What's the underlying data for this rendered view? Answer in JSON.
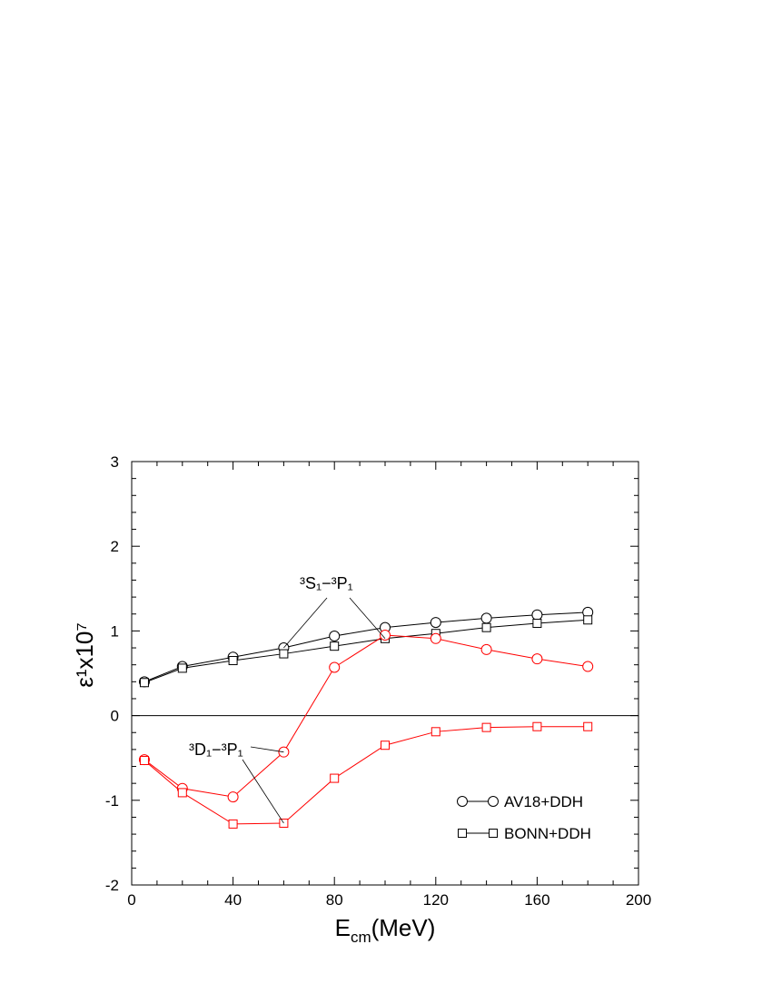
{
  "chart_data": {
    "type": "line",
    "xlabel": [
      "E",
      "cm",
      "(MeV)"
    ],
    "ylabel": "ε¹x10⁷",
    "x": [
      5,
      20,
      40,
      60,
      80,
      100,
      120,
      140,
      160,
      180
    ],
    "xlim": [
      0,
      200
    ],
    "xticks": [
      0,
      40,
      80,
      120,
      160,
      200
    ],
    "ylim": [
      -2,
      3
    ],
    "yticks": [
      -2,
      -1,
      0,
      1,
      2,
      3
    ],
    "groups": [
      {
        "label": "³S₁−³P₁",
        "color": "#000000",
        "series": [
          {
            "name": "AV18+DDH",
            "marker": "circle",
            "values": [
              0.4,
              0.58,
              0.69,
              0.8,
              0.94,
              1.04,
              1.1,
              1.15,
              1.19,
              1.22
            ]
          },
          {
            "name": "BONN+DDH",
            "marker": "square",
            "values": [
              0.39,
              0.56,
              0.65,
              0.73,
              0.82,
              0.91,
              0.97,
              1.04,
              1.09,
              1.13
            ]
          }
        ]
      },
      {
        "label": "³D₁−³P₁",
        "color": "#ff0000",
        "series": [
          {
            "name": "AV18+DDH",
            "marker": "circle",
            "values": [
              -0.52,
              -0.86,
              -0.96,
              -0.43,
              0.57,
              0.95,
              0.91,
              0.78,
              0.67,
              0.58
            ]
          },
          {
            "name": "BONN+DDH",
            "marker": "square",
            "values": [
              -0.53,
              -0.91,
              -1.28,
              -1.27,
              -0.74,
              -0.35,
              -0.19,
              -0.14,
              -0.13,
              -0.13
            ]
          }
        ]
      }
    ]
  }
}
